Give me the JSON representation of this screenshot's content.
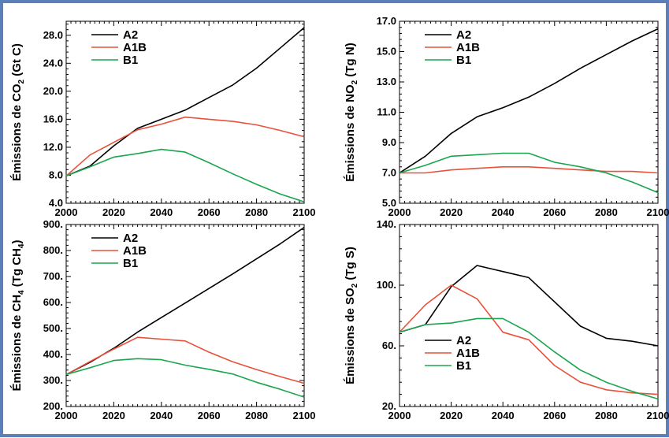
{
  "colors": {
    "A2": "#000000",
    "A1B": "#e8513a",
    "B1": "#1aa54e",
    "frame": "#5b7fb8"
  },
  "chart_data": [
    {
      "type": "line",
      "id": "co2",
      "ylabel_main": "Émissions de CO",
      "ylabel_sub": "2",
      "ylabel_tail": " (Gt C)",
      "xlim": [
        2000,
        2100
      ],
      "ylim": [
        4.0,
        30.0
      ],
      "xticks": [
        "2000",
        "2020",
        "2040",
        "2060",
        "2080",
        "2100"
      ],
      "yticks": [
        "4.0",
        "8.0",
        "12.0",
        "16.0",
        "20.0",
        "24.0",
        "28.0"
      ],
      "legend": "top-left",
      "x": [
        2000,
        2010,
        2020,
        2030,
        2040,
        2050,
        2060,
        2070,
        2080,
        2090,
        2100
      ],
      "series": [
        {
          "name": "A2",
          "values": [
            7.9,
            9.3,
            12.2,
            14.7,
            16.0,
            17.3,
            19.1,
            20.9,
            23.3,
            26.2,
            29.1
          ]
        },
        {
          "name": "A1B",
          "values": [
            7.9,
            10.9,
            12.7,
            14.5,
            15.3,
            16.3,
            16.0,
            15.7,
            15.2,
            14.4,
            13.5
          ]
        },
        {
          "name": "B1",
          "values": [
            7.9,
            9.2,
            10.6,
            11.1,
            11.7,
            11.3,
            9.8,
            8.2,
            6.7,
            5.3,
            4.2
          ]
        }
      ]
    },
    {
      "type": "line",
      "id": "no2",
      "ylabel_main": "Émissions de NO",
      "ylabel_sub": "2",
      "ylabel_tail": " (Tg N)",
      "xlim": [
        2000,
        2100
      ],
      "ylim": [
        5.0,
        17.0
      ],
      "xticks": [
        "2000",
        "2020",
        "2040",
        "2060",
        "2080",
        "2100"
      ],
      "yticks": [
        "5.0",
        "7.0",
        "9.0",
        "11.0",
        "13.0",
        "15.0",
        "17.0"
      ],
      "legend": "top-left",
      "x": [
        2000,
        2010,
        2020,
        2030,
        2040,
        2050,
        2060,
        2070,
        2080,
        2090,
        2100
      ],
      "series": [
        {
          "name": "A2",
          "values": [
            7.0,
            8.1,
            9.6,
            10.7,
            11.3,
            12.0,
            12.9,
            13.9,
            14.8,
            15.7,
            16.5
          ]
        },
        {
          "name": "A1B",
          "values": [
            7.0,
            7.0,
            7.2,
            7.3,
            7.4,
            7.4,
            7.3,
            7.2,
            7.1,
            7.1,
            7.0
          ]
        },
        {
          "name": "B1",
          "values": [
            7.0,
            7.5,
            8.1,
            8.2,
            8.3,
            8.3,
            7.7,
            7.4,
            7.0,
            6.4,
            5.7
          ]
        }
      ]
    },
    {
      "type": "line",
      "id": "ch4",
      "ylabel_main": "Émissions de CH",
      "ylabel_sub": "4",
      "ylabel_tail": " (Tg CH",
      "ylabel_sub2": "4",
      "ylabel_tail2": ")",
      "xlim": [
        2000,
        2100
      ],
      "ylim": [
        200,
        900
      ],
      "xticks": [
        "2000",
        "2020",
        "2040",
        "2060",
        "2080",
        "2100"
      ],
      "yticks": [
        "200.",
        "300.",
        "400.",
        "500.",
        "600.",
        "700.",
        "800.",
        "900."
      ],
      "legend": "top-left",
      "x": [
        2000,
        2010,
        2020,
        2030,
        2040,
        2050,
        2060,
        2070,
        2080,
        2090,
        2100
      ],
      "series": [
        {
          "name": "A2",
          "values": [
            323,
            370,
            424,
            486,
            542,
            598,
            654,
            710,
            768,
            826,
            889
          ]
        },
        {
          "name": "A1B",
          "values": [
            323,
            373,
            421,
            466,
            459,
            452,
            409,
            372,
            342,
            315,
            289
          ]
        },
        {
          "name": "B1",
          "values": [
            323,
            349,
            377,
            384,
            380,
            359,
            343,
            325,
            293,
            266,
            236
          ]
        }
      ]
    },
    {
      "type": "line",
      "id": "so2",
      "ylabel_main": "Émissions de SO",
      "ylabel_sub": "2",
      "ylabel_tail": " (Tg S)",
      "xlim": [
        2000,
        2100
      ],
      "ylim": [
        20,
        140
      ],
      "xticks": [
        "2000",
        "2020",
        "2040",
        "2060",
        "2080",
        "2100"
      ],
      "yticks": [
        "20.",
        "60.",
        "100.",
        "140."
      ],
      "legend": "bottom-left",
      "x": [
        2000,
        2010,
        2020,
        2030,
        2040,
        2050,
        2060,
        2070,
        2080,
        2090,
        2100
      ],
      "series": [
        {
          "name": "A2",
          "values": [
            69,
            74,
            99,
            113,
            109,
            105,
            89,
            73,
            65,
            63,
            60
          ]
        },
        {
          "name": "A1B",
          "values": [
            69,
            87,
            100,
            91,
            69,
            64,
            47,
            36,
            31,
            29,
            28
          ]
        },
        {
          "name": "B1",
          "values": [
            69,
            74,
            75,
            78,
            78,
            69,
            56,
            44,
            36,
            30,
            25
          ]
        }
      ]
    }
  ]
}
